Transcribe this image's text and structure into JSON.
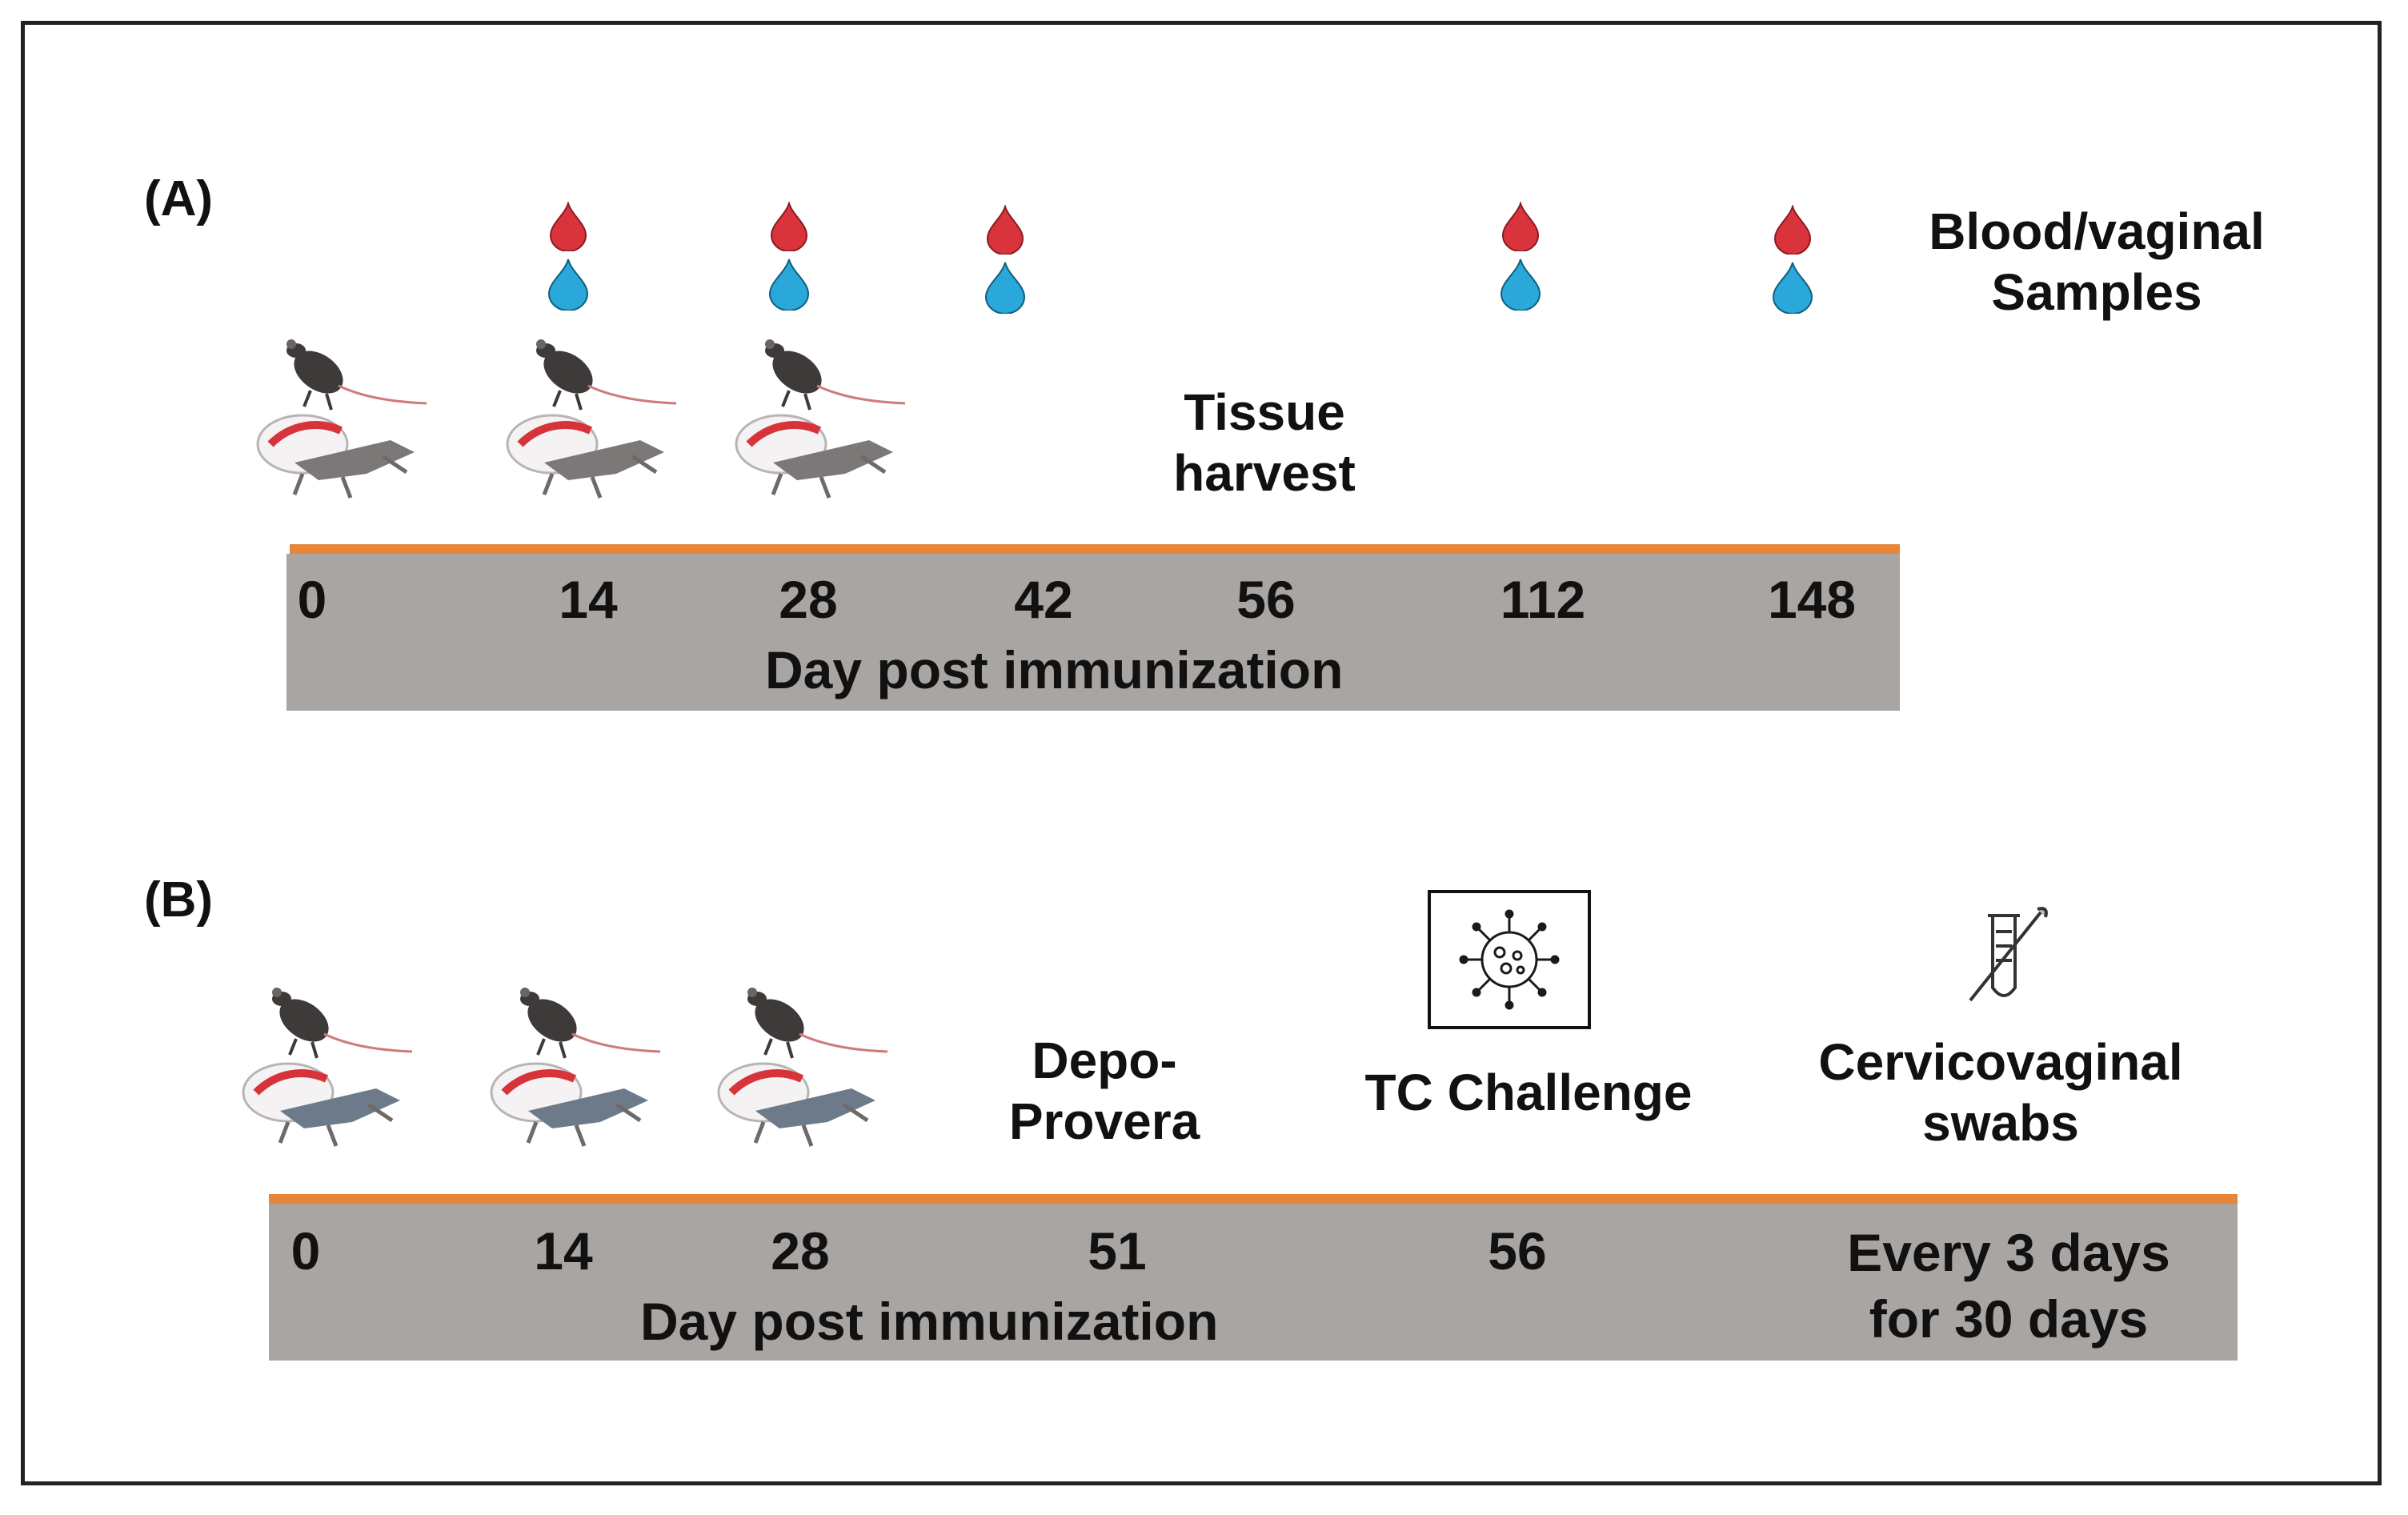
{
  "panel_a": {
    "label": "(A)",
    "sample_legend": [
      "Blood/vaginal",
      "Samples"
    ],
    "harvest_label": [
      "Tissue",
      "harvest"
    ],
    "ticks": [
      "0",
      "14",
      "28",
      "42",
      "56",
      "112",
      "148"
    ],
    "axis_title": "Day post immunization",
    "sample_days": [
      "14",
      "28",
      "42",
      "112",
      "148"
    ],
    "immunization_days": [
      "0",
      "14",
      "28"
    ]
  },
  "panel_b": {
    "label": "(B)",
    "depo_label": [
      "Depo-",
      "Provera"
    ],
    "challenge_label": "TC Challenge",
    "swab_label": [
      "Cervicovaginal",
      "swabs"
    ],
    "ticks": [
      "0",
      "14",
      "28",
      "51",
      "56"
    ],
    "last_tick": [
      "Every 3 days",
      "for 30 days"
    ],
    "axis_title": "Day post immunization",
    "immunization_days": [
      "0",
      "14",
      "28"
    ]
  },
  "icons": {
    "blood_drop": "blood-drop-icon",
    "vaginal_drop": "vaginal-sample-drop-icon",
    "mouse": "mouse-icon",
    "immunization": "mouse-immunization-icon",
    "virus": "chlamydia-virus-icon",
    "swab": "swab-tube-icon"
  },
  "colors": {
    "timeline_accent": "#e6863a",
    "timeline_bar": "#a8a5a3",
    "blood": "#d9343c",
    "vaginal": "#29a8d9"
  }
}
